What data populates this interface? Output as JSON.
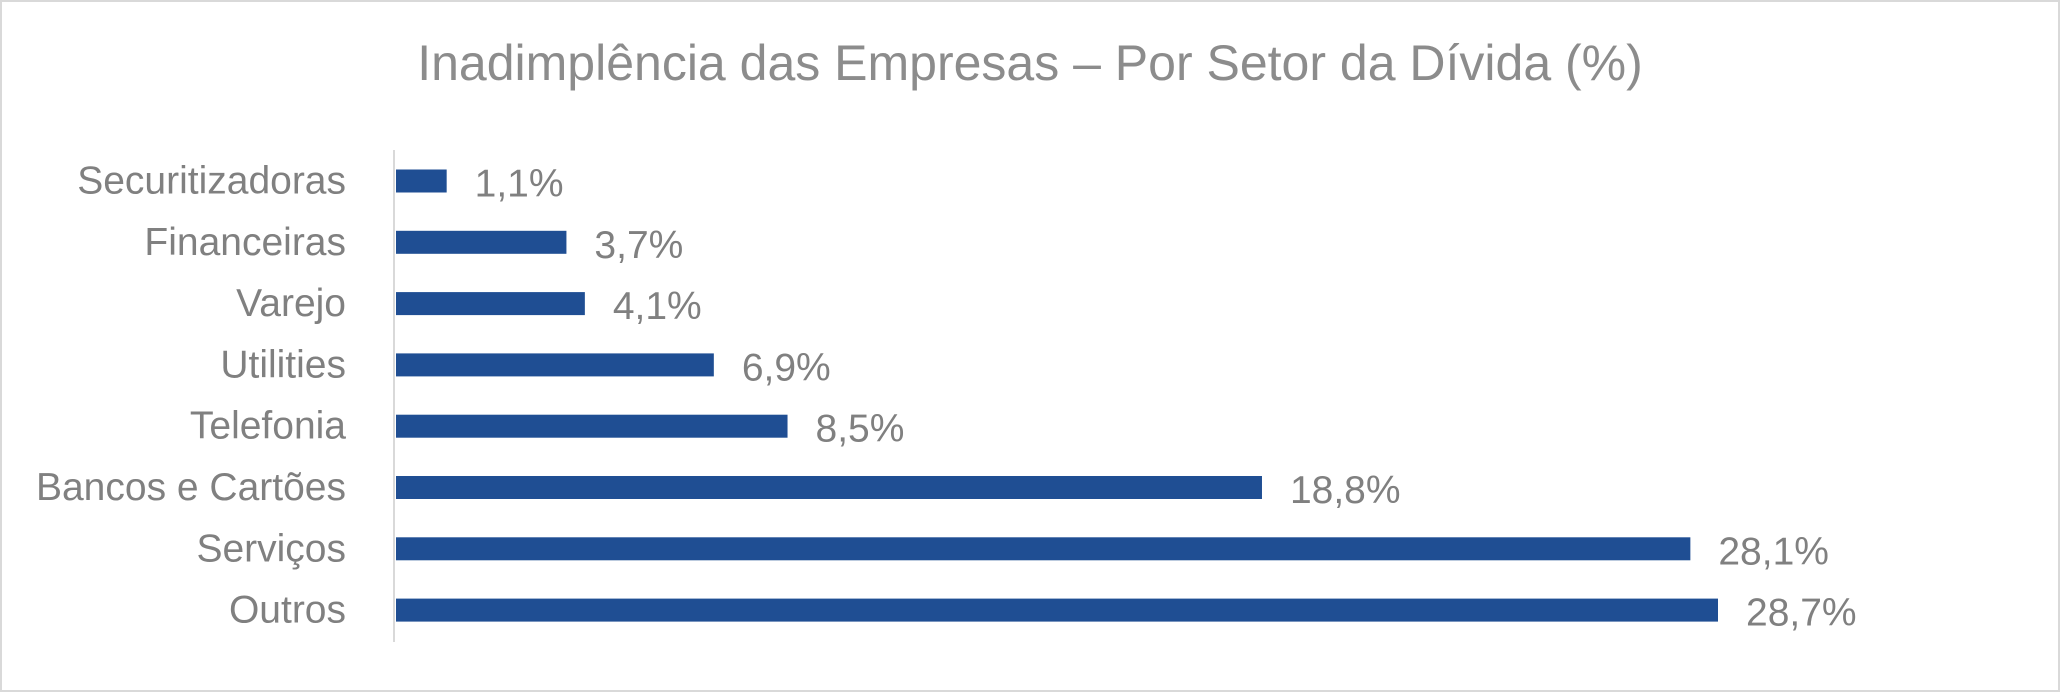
{
  "chart_data": {
    "type": "bar",
    "orientation": "horizontal",
    "title": "Inadimplência das Empresas – Por Setor da Dívida (%)",
    "categories": [
      "Securitizadoras",
      "Financeiras",
      "Varejo",
      "Utilities",
      "Telefonia",
      "Bancos e Cartões",
      "Serviços",
      "Outros"
    ],
    "values": [
      1.1,
      3.7,
      4.1,
      6.9,
      8.5,
      18.8,
      28.1,
      28.7
    ],
    "data_labels": [
      "1,1%",
      "3,7%",
      "4,1%",
      "6,9%",
      "8,5%",
      "18,8%",
      "28,1%",
      "28,7%"
    ],
    "xlabel": "",
    "ylabel": "",
    "xlim": [
      0,
      30
    ],
    "grid": false,
    "legend": "none",
    "bar_color": "#1f4e93",
    "text_color": "#808080"
  }
}
